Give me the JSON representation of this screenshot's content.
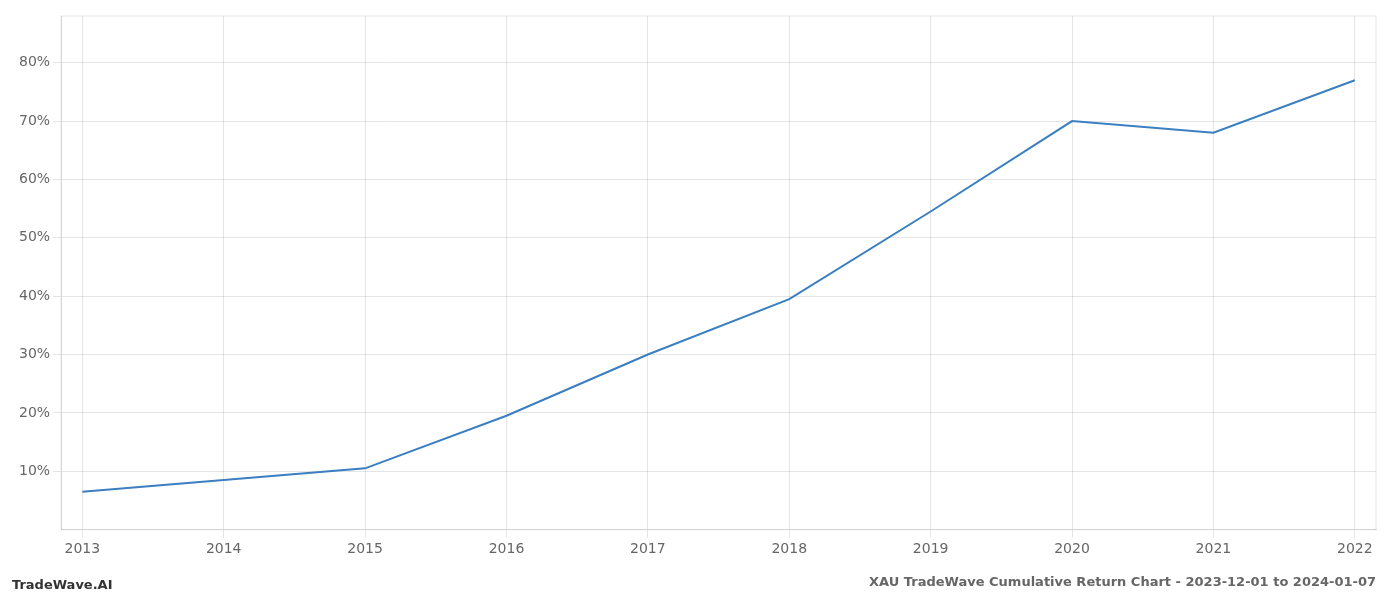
{
  "chart_data": {
    "type": "line",
    "title": "XAU TradeWave Cumulative Return Chart - 2023-12-01 to 2024-01-07",
    "annotations": [
      "TradeWave.AI"
    ],
    "x": [
      2013,
      2014,
      2015,
      2016,
      2017,
      2018,
      2019,
      2020,
      2021,
      2022
    ],
    "values": [
      0.065,
      0.085,
      0.105,
      0.195,
      0.3,
      0.395,
      0.545,
      0.7,
      0.68,
      0.77
    ],
    "color": "#3a7fc1",
    "xlim": [
      2012.85,
      2022.15
    ],
    "xticks": [
      2013,
      2014,
      2015,
      2016,
      2017,
      2018,
      2019,
      2020,
      2021,
      2022
    ],
    "ylim": [
      0.0,
      0.88
    ],
    "yticks": [
      {
        "value": 0.1,
        "label": "10%"
      },
      {
        "value": 0.2,
        "label": "20%"
      },
      {
        "value": 0.3,
        "label": "30%"
      },
      {
        "value": 0.4,
        "label": "40%"
      },
      {
        "value": 0.5,
        "label": "50%"
      },
      {
        "value": 0.6,
        "label": "60%"
      },
      {
        "value": 0.7,
        "label": "70%"
      },
      {
        "value": 0.8,
        "label": "80%"
      }
    ],
    "grid": true
  }
}
